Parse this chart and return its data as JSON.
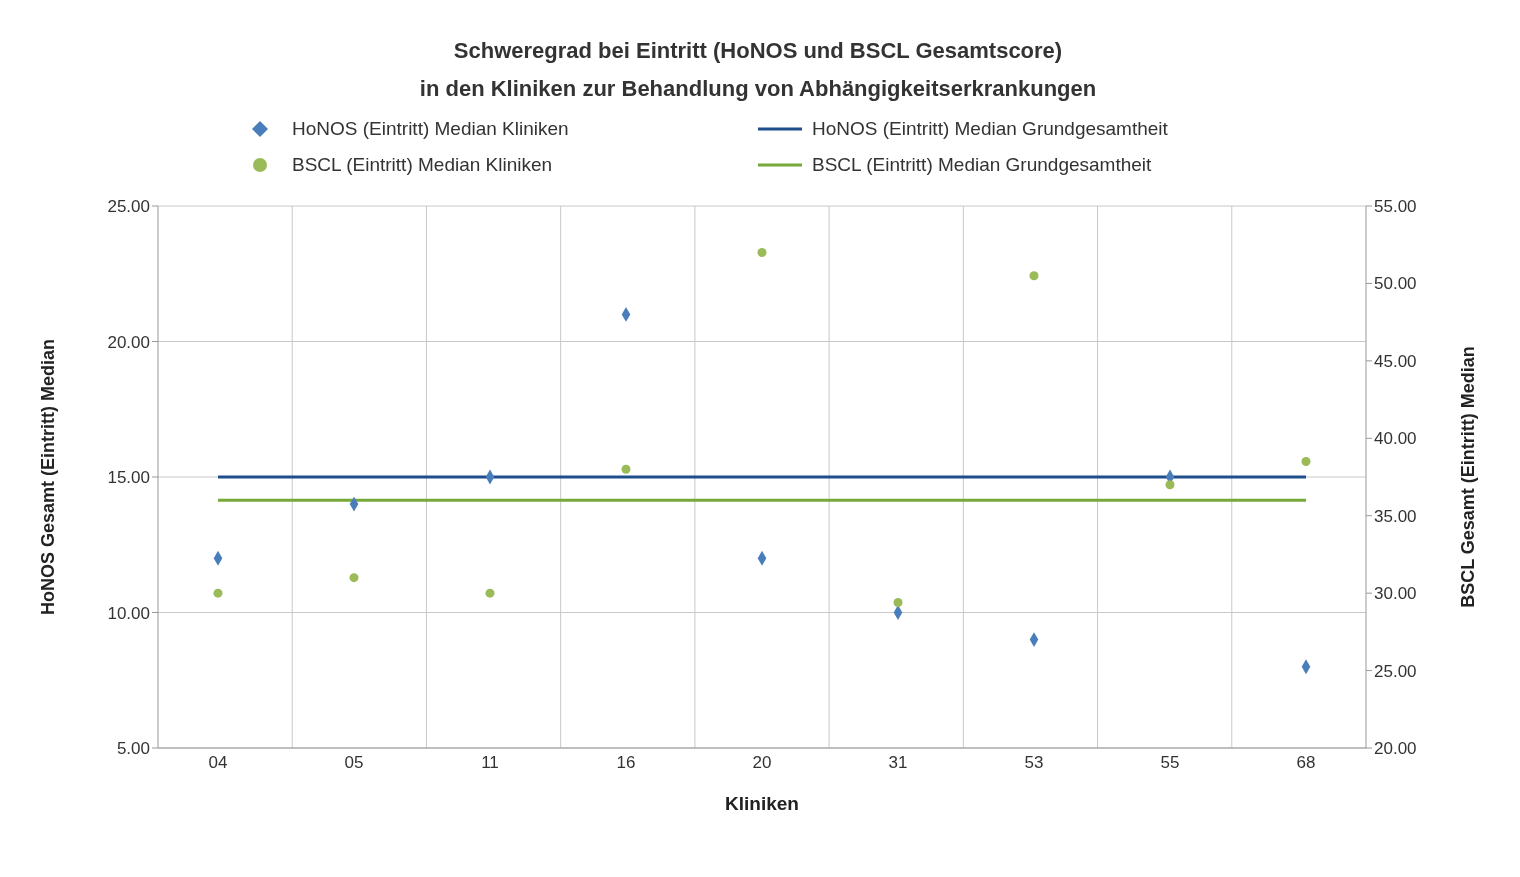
{
  "chart_data": {
    "type": "scatter",
    "title": "Schweregrad bei Eintritt (HoNOS und BSCL Gesamtscore)\nin den Kliniken zur Behandlung von Abhängigkeitserkrankungen",
    "xlabel": "Kliniken",
    "ylabel": "HoNOS Gesamt (Eintritt) Median",
    "y2label": "BSCL Gesamt (Eintritt) Median",
    "categories": [
      "04",
      "05",
      "11",
      "16",
      "20",
      "31",
      "53",
      "55",
      "68"
    ],
    "series": [
      {
        "name": "HoNOS (Eintritt) Median Kliniken",
        "marker": "diamond",
        "color": "#4a7ebb",
        "values": [
          12,
          14,
          15,
          21,
          12,
          10,
          9,
          15,
          8
        ]
      },
      {
        "name": "HoNOS (Eintritt) Median Grundgesamtheit",
        "type": "line",
        "marker": "none",
        "color": "#1f4e8c",
        "values": [
          15,
          15,
          15,
          15,
          15,
          15,
          15,
          15,
          15
        ]
      },
      {
        "name": "BSCL (Eintritt) Median Kliniken",
        "marker": "circle",
        "axis": "y2",
        "color": "#9bbb59",
        "values": [
          30,
          31,
          30,
          38,
          52,
          29.4,
          50.5,
          37,
          38.5
        ]
      },
      {
        "name": "BSCL (Eintritt) Median Grundgesamtheit",
        "type": "line",
        "marker": "none",
        "axis": "y2",
        "color": "#77a83a",
        "values": [
          36,
          36,
          36,
          36,
          36,
          36,
          36,
          36,
          36
        ]
      }
    ],
    "ylim": [
      5,
      25
    ],
    "yticks": [
      {
        "value": 5,
        "label": "5.00"
      },
      {
        "value": 10,
        "label": "10.00"
      },
      {
        "value": 15,
        "label": "15.00"
      },
      {
        "value": 20,
        "label": "20.00"
      },
      {
        "value": 25,
        "label": "25.00"
      }
    ],
    "y2lim": [
      20,
      55
    ],
    "y2ticks": [
      {
        "value": 20,
        "label": "20.00"
      },
      {
        "value": 25,
        "label": "25.00"
      },
      {
        "value": 30,
        "label": "30.00"
      },
      {
        "value": 35,
        "label": "35.00"
      },
      {
        "value": 40,
        "label": "40.00"
      },
      {
        "value": 45,
        "label": "45.00"
      },
      {
        "value": 50,
        "label": "50.00"
      },
      {
        "value": 55,
        "label": "55.00"
      }
    ],
    "grid": true,
    "legend": "top"
  }
}
